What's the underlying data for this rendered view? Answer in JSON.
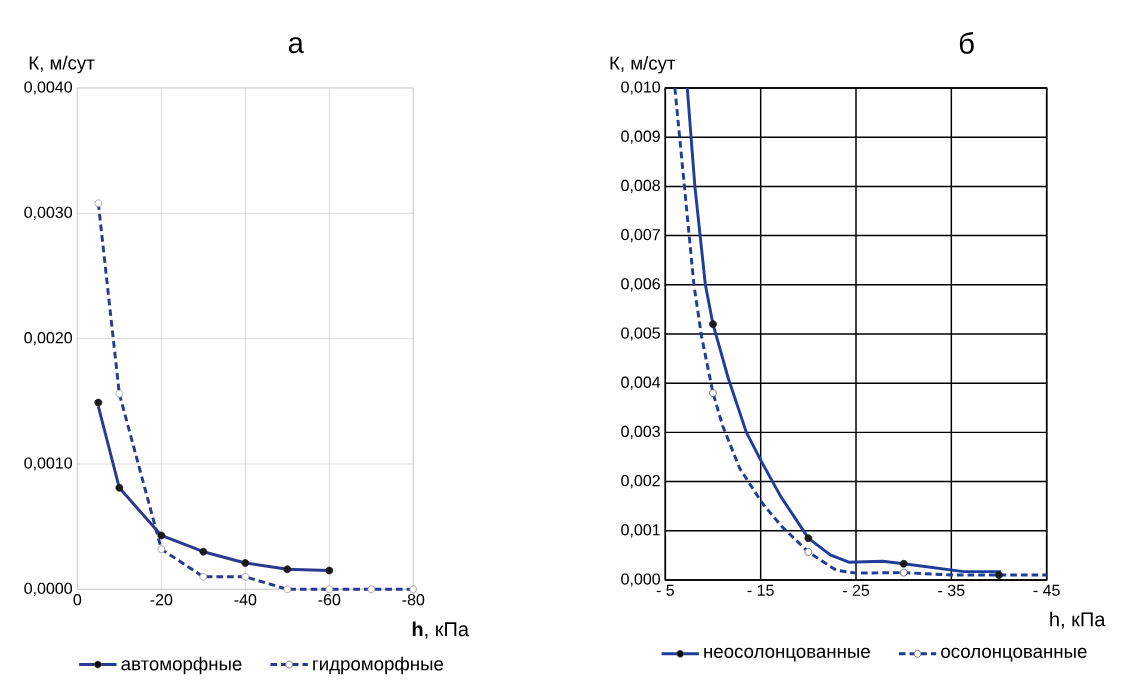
{
  "chart_data": [
    {
      "type": "line",
      "title": "а",
      "xlabel": "**h**, кПа",
      "ylabel": "К, м/сут",
      "xlim": [
        0,
        -80
      ],
      "ylim": [
        0,
        0.004
      ],
      "xticks": [
        0,
        -20,
        -40,
        -60,
        -80
      ],
      "yticks": [
        {
          "value": 0,
          "label": "0,0000"
        },
        {
          "value": 0.001,
          "label": "0,0010"
        },
        {
          "value": 0.002,
          "label": "0,0020"
        },
        {
          "value": 0.003,
          "label": "0,0030"
        },
        {
          "value": 0.004,
          "label": "0,0040"
        }
      ],
      "grid": true,
      "legend": "bottom",
      "series": [
        {
          "name": "автоморфные",
          "color": "#2b3a8f",
          "line_style": "solid",
          "x": [
            -5,
            -10,
            -20,
            -30,
            -40,
            -50,
            -60
          ],
          "values": [
            0.00146,
            0.00081,
            0.00043,
            0.0003,
            0.00021,
            0.00016,
            0.00015
          ]
        },
        {
          "name": "гидроморфные",
          "color": "#2b3a8f",
          "line_style": "dashed",
          "x": [
            -5,
            -10,
            -20,
            -30,
            -40,
            -50,
            -60,
            -70,
            -80
          ],
          "values": [
            0.00308,
            0.00156,
            0.00032,
            0.0001,
            0.0001,
            0,
            0,
            0,
            0
          ]
        },
        {
          "type": "scatter",
          "color": "#1a1a1a",
          "marker": "circle",
          "x": [
            -5,
            -10,
            -20,
            -30,
            -40,
            -50,
            -60
          ],
          "values": [
            0.00149,
            0.00081,
            0.00043,
            0.0003,
            0.00021,
            0.00016,
            0.00015
          ]
        },
        {
          "type": "scatter",
          "color": "#999999",
          "marker": "circle",
          "line_style": "dashed",
          "x": [
            -5,
            -10,
            -20,
            -30,
            -40,
            -50,
            -60,
            -70,
            -80
          ],
          "values": [
            0.00308,
            0.00156,
            0.00032,
            0.0001,
            0.0001,
            0,
            0,
            0,
            0
          ]
        }
      ]
    },
    {
      "type": "line",
      "title": "б",
      "xlabel": "h, кПа",
      "ylabel": "К, м/сут",
      "xlim": [
        -5,
        -45
      ],
      "ylim": [
        0,
        0.01
      ],
      "xticks": [
        {
          "value": -5,
          "label": "- 5"
        },
        {
          "value": -15,
          "label": "- 15"
        },
        {
          "value": -25,
          "label": "- 25"
        },
        {
          "value": -35,
          "label": "- 35"
        },
        {
          "value": -45,
          "label": "- 45"
        }
      ],
      "yticks": [
        {
          "value": 0,
          "label": "0,000"
        },
        {
          "value": 0.001,
          "label": "0,001"
        },
        {
          "value": 0.002,
          "label": "0,002"
        },
        {
          "value": 0.003,
          "label": "0,003"
        },
        {
          "value": 0.004,
          "label": "0,004"
        },
        {
          "value": 0.005,
          "label": "0,005"
        },
        {
          "value": 0.006,
          "label": "0,006"
        },
        {
          "value": 0.007,
          "label": "0,007"
        },
        {
          "value": 0.008,
          "label": "0,008"
        },
        {
          "value": 0.009,
          "label": "0,009"
        },
        {
          "value": 0.01,
          "label": "0,010"
        }
      ],
      "grid": true,
      "legend": "bottom",
      "series": [
        {
          "name": "неосолонцованные",
          "color": "#1f3d99",
          "line_style": "solid",
          "x": [
            -7.3,
            -8.1,
            -9.2,
            -10,
            -11.6,
            -13.5,
            -15.1,
            -17.1,
            -20,
            -22.3,
            -24.3,
            -27.8,
            -30,
            -36.3,
            -40.2
          ],
          "values": [
            0.01,
            0.008,
            0.006,
            0.0052,
            0.0041,
            0.003,
            0.0024,
            0.0017,
            0.00085,
            0.00051,
            0.00036,
            0.00038,
            0.00033,
            0.00017,
            0.00017
          ]
        },
        {
          "name": "осолонцованные",
          "color": "#1f3d99",
          "line_style": "dashed",
          "x": [
            -6,
            -7,
            -8,
            -8.8,
            -10,
            -11,
            -12.8,
            -15.1,
            -17.1,
            -20,
            -22.9,
            -25,
            -30,
            -35.2,
            -45
          ],
          "values": [
            0.01,
            0.008,
            0.006,
            0.00495,
            0.0038,
            0.00314,
            0.00227,
            0.00158,
            0.00111,
            0.00057,
            0.0002,
            0.00014,
            0.00015,
            0.0001,
            0.0001
          ]
        },
        {
          "type": "scatter",
          "color": "#1a1a1a",
          "marker": "circle",
          "x": [
            -10,
            -20,
            -30,
            -40
          ],
          "values": [
            0.0052,
            0.00085,
            0.00033,
            0.0001
          ]
        },
        {
          "type": "scatter",
          "color": "#555555",
          "marker": "circle",
          "line_style": "dashed",
          "x": [
            -10,
            -20,
            -30
          ],
          "values": [
            0.0038,
            0.00057,
            0.00015
          ]
        }
      ]
    }
  ]
}
